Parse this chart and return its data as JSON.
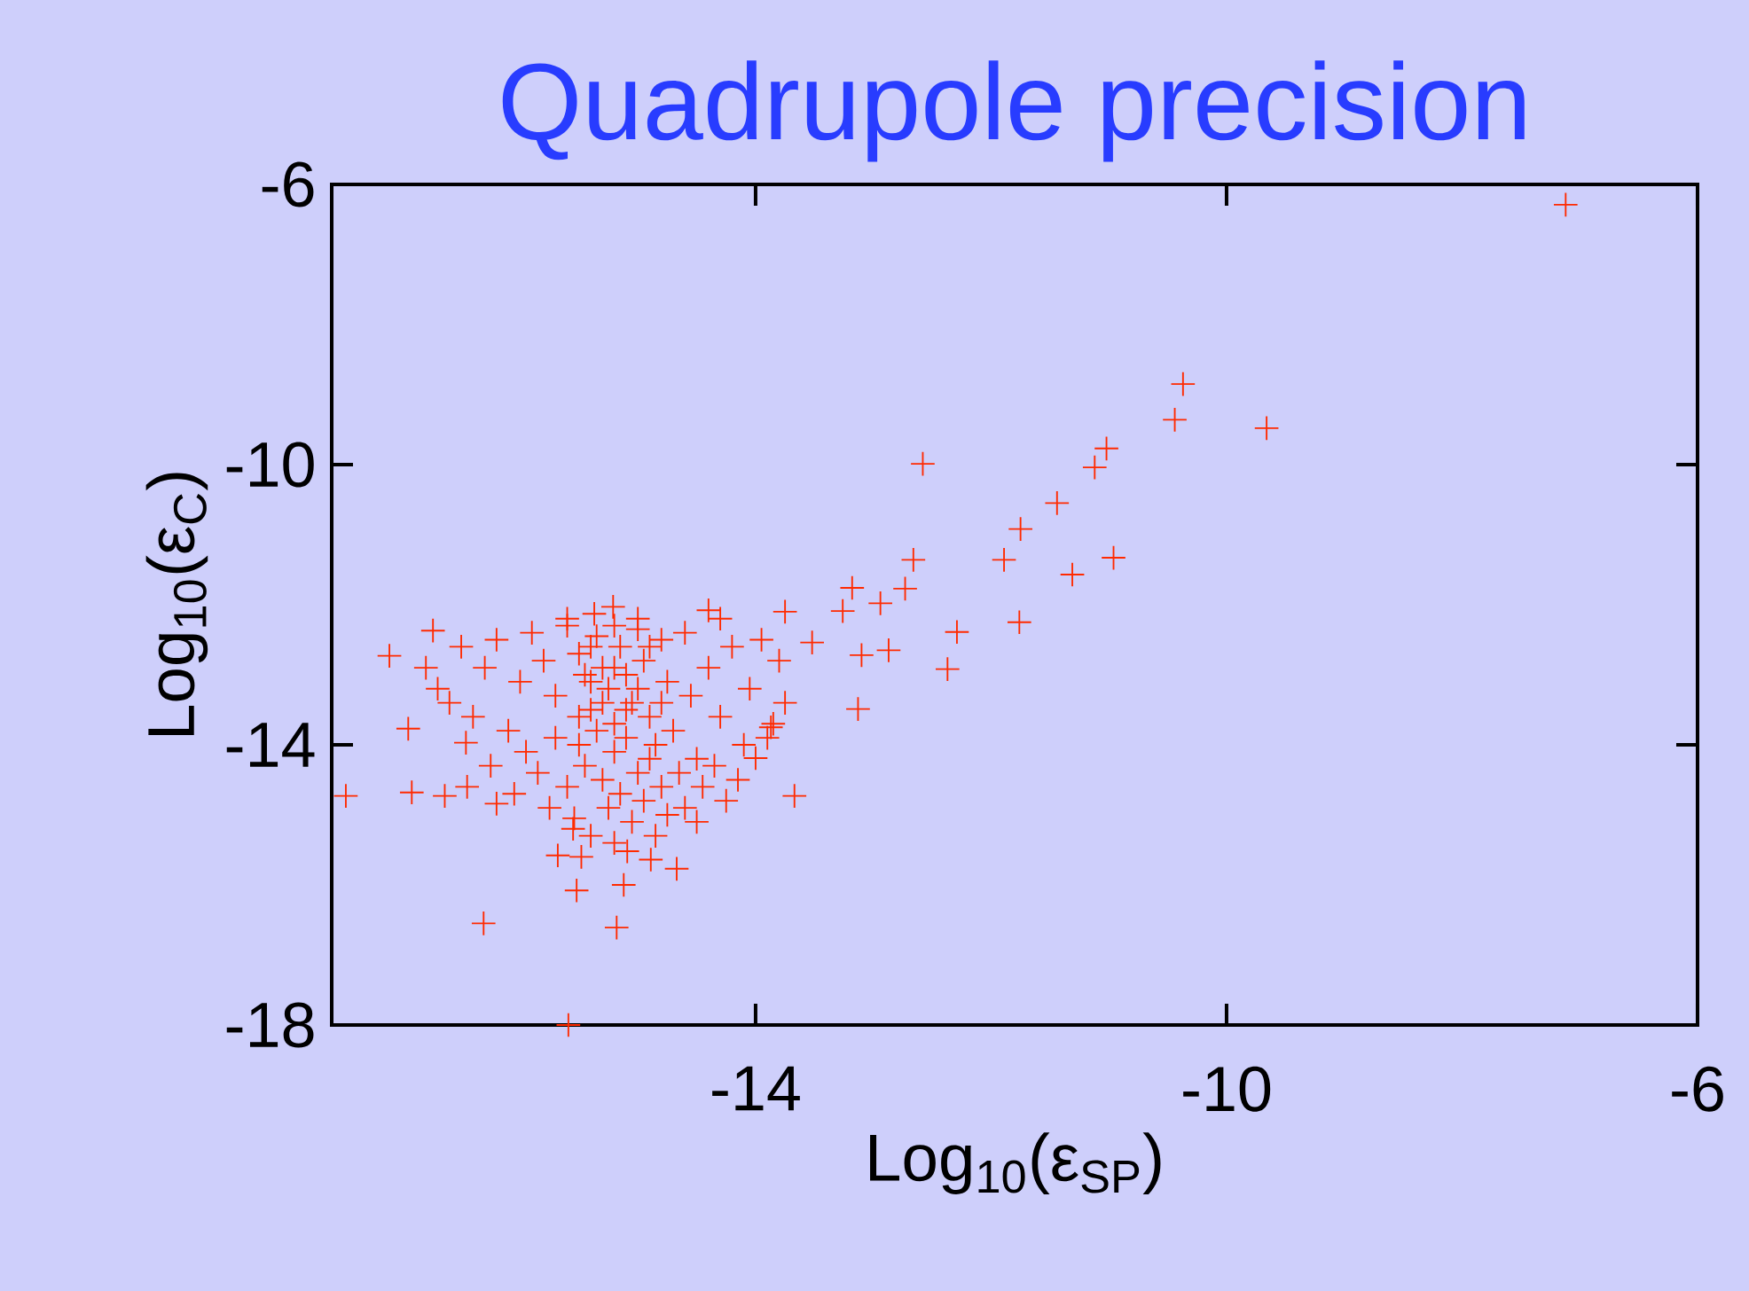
{
  "chart_data": {
    "type": "scatter",
    "title": "Quadrupole precision",
    "xlabel": "Log$_{10}$(ε$_{SP}$)",
    "ylabel": "Log$_{10}$(ε$_{C}$)",
    "xlim": [
      -17.6,
      -6
    ],
    "ylim": [
      -18,
      -6
    ],
    "xticks": [
      -14,
      -10,
      -6
    ],
    "yticks": [
      -18,
      -14,
      -10,
      -6
    ],
    "marker": "cross",
    "color": "#ff2a00",
    "x": [
      -7.12,
      -10.37,
      -10.44,
      -9.66,
      -11.02,
      -11.12,
      -12.58,
      -11.44,
      -11.75,
      -10.96,
      -11.31,
      -11.89,
      -12.66,
      -12.73,
      -12.94,
      -13.18,
      -13.26,
      -11.76,
      -12.29,
      -12.37,
      -13.13,
      -13.52,
      -13.75,
      -12.87,
      -13.1,
      -17.11,
      -16.74,
      -16.95,
      -17.48,
      -16.92,
      -16.64,
      -16.31,
      -15.18,
      -15.52,
      -15.12,
      -14.67,
      -14.89,
      -15.68,
      -13.67,
      -14.0,
      -13.87,
      -15.21,
      -15.37,
      -14.4,
      -16.46,
      -16.2,
      -15.54,
      -15.09,
      -15.48,
      -15.59,
      -16.5,
      -16.3,
      -16.2,
      -16.0,
      -15.9,
      -15.8,
      -15.7,
      -15.6,
      -15.5,
      -15.45,
      -15.4,
      -15.35,
      -15.3,
      -15.25,
      -15.2,
      -15.15,
      -15.1,
      -15.05,
      -15.0,
      -14.95,
      -14.9,
      -14.85,
      -14.8,
      -14.75,
      -14.7,
      -14.6,
      -14.55,
      -14.5,
      -14.4,
      -14.3,
      -14.2,
      -14.1,
      -14.05,
      -13.95,
      -13.9,
      -16.6,
      -16.4,
      -16.1,
      -15.95,
      -15.85,
      -15.7,
      -15.6,
      -15.5,
      -15.45,
      -15.35,
      -15.3,
      -15.25,
      -15.2,
      -15.15,
      -15.1,
      -15.05,
      -15.0,
      -14.95,
      -14.9,
      -14.8,
      -14.75,
      -14.65,
      -14.6,
      -14.45,
      -14.35,
      -14.25,
      -14.15,
      -16.25,
      -16.45,
      -16.05,
      -15.75,
      -15.55,
      -15.4,
      -15.2,
      -14.85,
      -14.5,
      -16.8,
      -16.7,
      -15.6,
      -15.0,
      -14.3,
      -13.8,
      -13.75,
      -13.85,
      -15.4,
      -15.2,
      -15.0,
      -15.1,
      -15.3,
      -14.9,
      -15.5,
      -14.8,
      -15.2,
      -15.4
    ],
    "values": [
      -6.29,
      -8.85,
      -9.36,
      -9.48,
      -9.77,
      -10.04,
      -9.99,
      -10.55,
      -10.92,
      -11.33,
      -11.57,
      -11.36,
      -11.36,
      -11.77,
      -11.98,
      -11.76,
      -12.09,
      -12.25,
      -12.39,
      -12.92,
      -13.49,
      -12.54,
      -12.1,
      -12.65,
      -12.72,
      -12.73,
      -12.37,
      -13.77,
      -14.73,
      -14.68,
      -14.73,
      -16.55,
      -16.61,
      -16.08,
      -16.0,
      -15.77,
      -15.64,
      -15.58,
      -14.73,
      -14.19,
      -13.75,
      -12.03,
      -12.13,
      -12.08,
      -13.97,
      -14.84,
      -15.05,
      -15.52,
      -15.6,
      -18,
      -12.6,
      -12.9,
      -12.5,
      -13.1,
      -12.4,
      -12.8,
      -13.3,
      -12.3,
      -12.7,
      -13.0,
      -13.5,
      -12.45,
      -12.9,
      -13.2,
      -13.7,
      -12.6,
      -13.0,
      -13.4,
      -12.35,
      -12.8,
      -13.6,
      -14.0,
      -12.5,
      -13.1,
      -13.8,
      -12.4,
      -13.3,
      -14.2,
      -12.9,
      -13.6,
      -12.6,
      -14.0,
      -13.2,
      -12.5,
      -13.9,
      -13.4,
      -13.6,
      -13.8,
      -14.1,
      -14.4,
      -13.9,
      -14.6,
      -14.0,
      -14.3,
      -13.8,
      -14.5,
      -14.9,
      -14.1,
      -14.7,
      -13.9,
      -15.1,
      -14.4,
      -14.8,
      -14.2,
      -14.6,
      -15.0,
      -14.4,
      -14.9,
      -14.6,
      -14.3,
      -14.8,
      -14.5,
      -14.3,
      -14.6,
      -14.7,
      -14.9,
      -15.2,
      -15.3,
      -15.4,
      -15.3,
      -15.1,
      -12.9,
      -13.2,
      -12.2,
      -12.2,
      -12.2,
      -12.8,
      -13.4,
      -13.7,
      -13.1,
      -12.9,
      -13.2,
      -13.5,
      -13.4,
      -12.6,
      -13.6,
      -13.4,
      -12.3,
      -12.6
    ]
  }
}
